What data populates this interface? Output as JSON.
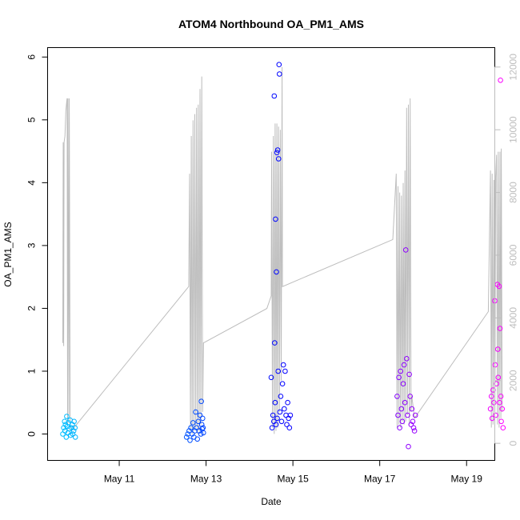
{
  "chart_data": {
    "type": "scatter",
    "title": "ATOM4 Northbound OA_PM1_AMS",
    "xlabel": "Date",
    "ylabel": "OA_PM1_AMS",
    "x_unit": "days",
    "x_origin_label": "May 10",
    "xlim": [
      9.35,
      19.65
    ],
    "ylim": [
      -0.42,
      6.15
    ],
    "x_ticks": [
      {
        "x": 11,
        "label": "May 11"
      },
      {
        "x": 13,
        "label": "May 13"
      },
      {
        "x": 15,
        "label": "May 15"
      },
      {
        "x": 17,
        "label": "May 17"
      },
      {
        "x": 19,
        "label": "May 19"
      }
    ],
    "y_ticks": [
      0,
      1,
      2,
      3,
      4,
      5,
      6
    ],
    "y2_ticks": [
      0,
      2000,
      4000,
      6000,
      8000,
      10000,
      12000
    ],
    "y2lim": [
      -545,
      12620
    ],
    "grid": false,
    "point_color_gradient": [
      "#00BFFF",
      "#0000FF",
      "#FF00FF"
    ],
    "series": [
      {
        "values": [
          {
            "x": 9.7,
            "y": 0.0
          },
          {
            "x": 9.72,
            "y": 0.1
          },
          {
            "x": 9.74,
            "y": 0.2
          },
          {
            "x": 9.75,
            "y": 0.05
          },
          {
            "x": 9.76,
            "y": 0.15
          },
          {
            "x": 9.78,
            "y": -0.05
          },
          {
            "x": 9.79,
            "y": 0.28
          },
          {
            "x": 9.8,
            "y": 0.12
          },
          {
            "x": 9.82,
            "y": 0.02
          },
          {
            "x": 9.83,
            "y": 0.18
          },
          {
            "x": 9.85,
            "y": 0.08
          },
          {
            "x": 9.87,
            "y": 0.22
          },
          {
            "x": 9.88,
            "y": -0.02
          },
          {
            "x": 9.9,
            "y": 0.1
          },
          {
            "x": 9.92,
            "y": 0.15
          },
          {
            "x": 9.93,
            "y": 0.0
          },
          {
            "x": 9.95,
            "y": 0.05
          },
          {
            "x": 9.96,
            "y": 0.2
          },
          {
            "x": 9.98,
            "y": 0.1
          },
          {
            "x": 9.99,
            "y": -0.05
          },
          {
            "x": 12.55,
            "y": -0.05
          },
          {
            "x": 12.58,
            "y": 0.0
          },
          {
            "x": 12.61,
            "y": 0.05
          },
          {
            "x": 12.63,
            "y": -0.1
          },
          {
            "x": 12.65,
            "y": 0.1
          },
          {
            "x": 12.68,
            "y": 0.0
          },
          {
            "x": 12.7,
            "y": 0.18
          },
          {
            "x": 12.72,
            "y": -0.05
          },
          {
            "x": 12.74,
            "y": 0.05
          },
          {
            "x": 12.76,
            "y": 0.35
          },
          {
            "x": 12.78,
            "y": 0.1
          },
          {
            "x": 12.8,
            "y": -0.08
          },
          {
            "x": 12.82,
            "y": 0.2
          },
          {
            "x": 12.84,
            "y": 0.05
          },
          {
            "x": 12.86,
            "y": 0.3
          },
          {
            "x": 12.88,
            "y": 0.0
          },
          {
            "x": 12.89,
            "y": 0.52
          },
          {
            "x": 12.9,
            "y": 0.15
          },
          {
            "x": 12.91,
            "y": 0.08
          },
          {
            "x": 12.92,
            "y": 0.25
          },
          {
            "x": 12.93,
            "y": 0.1
          },
          {
            "x": 12.94,
            "y": 0.02
          },
          {
            "x": 14.5,
            "y": 0.9
          },
          {
            "x": 14.52,
            "y": 0.1
          },
          {
            "x": 14.54,
            "y": 0.3
          },
          {
            "x": 14.56,
            "y": 0.2
          },
          {
            "x": 14.57,
            "y": 5.38
          },
          {
            "x": 14.58,
            "y": 1.45
          },
          {
            "x": 14.59,
            "y": 0.5
          },
          {
            "x": 14.6,
            "y": 3.42
          },
          {
            "x": 14.61,
            "y": 0.15
          },
          {
            "x": 14.62,
            "y": 2.58
          },
          {
            "x": 14.63,
            "y": 4.48
          },
          {
            "x": 14.64,
            "y": 0.25
          },
          {
            "x": 14.65,
            "y": 4.52
          },
          {
            "x": 14.66,
            "y": 1.0
          },
          {
            "x": 14.67,
            "y": 4.38
          },
          {
            "x": 14.68,
            "y": 5.88
          },
          {
            "x": 14.69,
            "y": 5.73
          },
          {
            "x": 14.7,
            "y": 0.35
          },
          {
            "x": 14.72,
            "y": 0.6
          },
          {
            "x": 14.74,
            "y": 0.2
          },
          {
            "x": 14.76,
            "y": 0.8
          },
          {
            "x": 14.78,
            "y": 1.1
          },
          {
            "x": 14.8,
            "y": 0.4
          },
          {
            "x": 14.82,
            "y": 1.0
          },
          {
            "x": 14.84,
            "y": 0.3
          },
          {
            "x": 14.86,
            "y": 0.15
          },
          {
            "x": 14.88,
            "y": 0.5
          },
          {
            "x": 14.9,
            "y": 0.25
          },
          {
            "x": 14.92,
            "y": 0.1
          },
          {
            "x": 14.94,
            "y": 0.3
          },
          {
            "x": 17.4,
            "y": 0.6
          },
          {
            "x": 17.42,
            "y": 0.3
          },
          {
            "x": 17.44,
            "y": 0.9
          },
          {
            "x": 17.46,
            "y": 0.1
          },
          {
            "x": 17.48,
            "y": 1.0
          },
          {
            "x": 17.5,
            "y": 0.4
          },
          {
            "x": 17.52,
            "y": 0.2
          },
          {
            "x": 17.54,
            "y": 0.8
          },
          {
            "x": 17.56,
            "y": 1.1
          },
          {
            "x": 17.58,
            "y": 0.5
          },
          {
            "x": 17.6,
            "y": 2.93
          },
          {
            "x": 17.62,
            "y": 1.2
          },
          {
            "x": 17.64,
            "y": 0.3
          },
          {
            "x": 17.66,
            "y": -0.2
          },
          {
            "x": 17.68,
            "y": 0.95
          },
          {
            "x": 17.7,
            "y": 0.6
          },
          {
            "x": 17.72,
            "y": 0.15
          },
          {
            "x": 17.74,
            "y": 0.4
          },
          {
            "x": 17.76,
            "y": 0.2
          },
          {
            "x": 17.78,
            "y": 0.1
          },
          {
            "x": 17.8,
            "y": 0.05
          },
          {
            "x": 17.82,
            "y": 0.3
          },
          {
            "x": 19.55,
            "y": 0.4
          },
          {
            "x": 19.57,
            "y": 0.6
          },
          {
            "x": 19.59,
            "y": 0.25
          },
          {
            "x": 19.61,
            "y": 0.7
          },
          {
            "x": 19.63,
            "y": 0.5
          },
          {
            "x": 19.65,
            "y": 2.12
          },
          {
            "x": 19.66,
            "y": 1.1
          },
          {
            "x": 19.67,
            "y": 0.3
          },
          {
            "x": 19.69,
            "y": 0.8
          },
          {
            "x": 19.71,
            "y": 2.38
          },
          {
            "x": 19.72,
            "y": 1.35
          },
          {
            "x": 19.73,
            "y": 0.9
          },
          {
            "x": 19.75,
            "y": 2.35
          },
          {
            "x": 19.76,
            "y": 0.5
          },
          {
            "x": 19.77,
            "y": 1.68
          },
          {
            "x": 19.78,
            "y": 5.63
          },
          {
            "x": 19.79,
            "y": 0.6
          },
          {
            "x": 19.8,
            "y": 0.2
          },
          {
            "x": 19.82,
            "y": 0.4
          },
          {
            "x": 19.84,
            "y": 0.1
          }
        ]
      },
      {
        "type": "line",
        "axis": "right",
        "color": "#bdbdbd",
        "values": [
          {
            "x": 9.7,
            "y": 3200
          },
          {
            "x": 9.71,
            "y": 9600
          },
          {
            "x": 9.72,
            "y": 3100
          },
          {
            "x": 9.73,
            "y": 9600
          },
          {
            "x": 9.75,
            "y": 9800
          },
          {
            "x": 9.77,
            "y": 10600
          },
          {
            "x": 9.79,
            "y": 10900
          },
          {
            "x": 9.8,
            "y": 11000
          },
          {
            "x": 9.81,
            "y": 600
          },
          {
            "x": 9.82,
            "y": 11000
          },
          {
            "x": 9.84,
            "y": 900
          },
          {
            "x": 9.85,
            "y": 11000
          },
          {
            "x": 9.87,
            "y": 600
          },
          {
            "x": 9.9,
            "y": 400
          },
          {
            "x": 12.6,
            "y": 5000
          },
          {
            "x": 12.62,
            "y": 8600
          },
          {
            "x": 12.64,
            "y": 400
          },
          {
            "x": 12.66,
            "y": 9800
          },
          {
            "x": 12.68,
            "y": 300
          },
          {
            "x": 12.7,
            "y": 10300
          },
          {
            "x": 12.72,
            "y": 400
          },
          {
            "x": 12.74,
            "y": 10500
          },
          {
            "x": 12.76,
            "y": 500
          },
          {
            "x": 12.78,
            "y": 10700
          },
          {
            "x": 12.8,
            "y": 300
          },
          {
            "x": 12.82,
            "y": 10800
          },
          {
            "x": 12.84,
            "y": 400
          },
          {
            "x": 12.86,
            "y": 11300
          },
          {
            "x": 12.88,
            "y": 600
          },
          {
            "x": 12.9,
            "y": 11700
          },
          {
            "x": 12.92,
            "y": 1000
          },
          {
            "x": 12.94,
            "y": 3200
          },
          {
            "x": 14.4,
            "y": 4300
          },
          {
            "x": 14.5,
            "y": 4700
          },
          {
            "x": 14.51,
            "y": 9300
          },
          {
            "x": 14.53,
            "y": 500
          },
          {
            "x": 14.55,
            "y": 9800
          },
          {
            "x": 14.57,
            "y": 300
          },
          {
            "x": 14.59,
            "y": 10200
          },
          {
            "x": 14.61,
            "y": 400
          },
          {
            "x": 14.63,
            "y": 10200
          },
          {
            "x": 14.65,
            "y": 500
          },
          {
            "x": 14.67,
            "y": 10100
          },
          {
            "x": 14.69,
            "y": 1000
          },
          {
            "x": 14.71,
            "y": 10000
          },
          {
            "x": 14.73,
            "y": 2000
          },
          {
            "x": 14.75,
            "y": 12000
          },
          {
            "x": 14.76,
            "y": 5000
          },
          {
            "x": 17.3,
            "y": 6500
          },
          {
            "x": 17.38,
            "y": 8600
          },
          {
            "x": 17.4,
            "y": 500
          },
          {
            "x": 17.42,
            "y": 8200
          },
          {
            "x": 17.44,
            "y": 600
          },
          {
            "x": 17.46,
            "y": 8000
          },
          {
            "x": 17.48,
            "y": 500
          },
          {
            "x": 17.5,
            "y": 7900
          },
          {
            "x": 17.52,
            "y": 700
          },
          {
            "x": 17.54,
            "y": 8300
          },
          {
            "x": 17.56,
            "y": 600
          },
          {
            "x": 17.58,
            "y": 8700
          },
          {
            "x": 17.6,
            "y": 700
          },
          {
            "x": 17.62,
            "y": 10700
          },
          {
            "x": 17.64,
            "y": 900
          },
          {
            "x": 17.66,
            "y": 10800
          },
          {
            "x": 17.68,
            "y": 600
          },
          {
            "x": 17.7,
            "y": 11000
          },
          {
            "x": 17.72,
            "y": 1000
          },
          {
            "x": 17.74,
            "y": 1500
          },
          {
            "x": 17.8,
            "y": 800
          },
          {
            "x": 19.5,
            "y": 4200
          },
          {
            "x": 19.55,
            "y": 8700
          },
          {
            "x": 19.57,
            "y": 500
          },
          {
            "x": 19.59,
            "y": 8600
          },
          {
            "x": 19.61,
            "y": 600
          },
          {
            "x": 19.63,
            "y": 8400
          },
          {
            "x": 19.65,
            "y": 500
          },
          {
            "x": 19.67,
            "y": 8500
          },
          {
            "x": 19.69,
            "y": 9200
          },
          {
            "x": 19.71,
            "y": 600
          },
          {
            "x": 19.73,
            "y": 9300
          },
          {
            "x": 19.75,
            "y": 500
          },
          {
            "x": 19.77,
            "y": 9300
          },
          {
            "x": 19.79,
            "y": 800
          },
          {
            "x": 19.8,
            "y": 9400
          },
          {
            "x": 19.82,
            "y": 1000
          }
        ]
      }
    ]
  }
}
